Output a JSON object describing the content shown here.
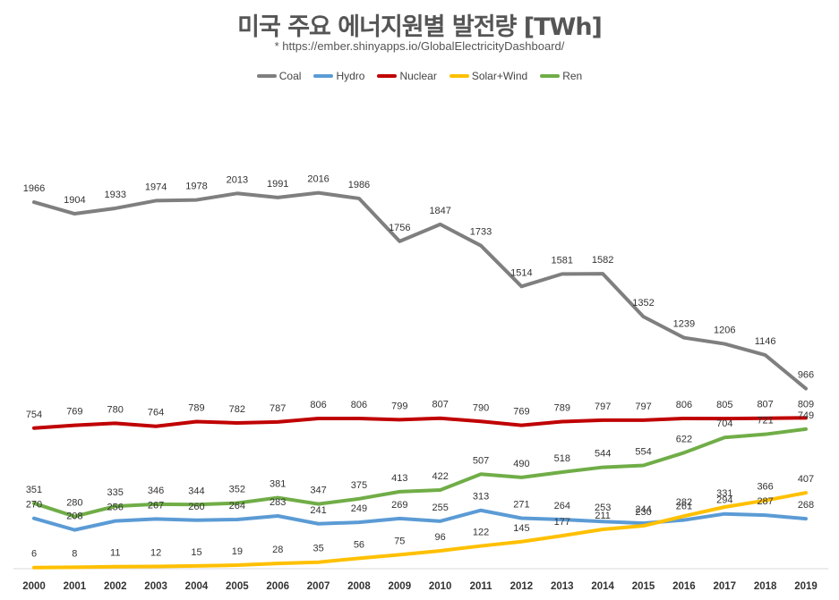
{
  "chart_data": {
    "type": "line",
    "title": "미국 주요 에너지원별 발전량 [TWh]",
    "subtitle": "* https://ember.shinyapps.io/GlobalElectricityDashboard/",
    "xlabel": "",
    "ylabel": "",
    "ylim": [
      0,
      2200
    ],
    "grid": false,
    "legend_position": "top",
    "x": [
      "2000",
      "2001",
      "2002",
      "2003",
      "2004",
      "2005",
      "2006",
      "2007",
      "2008",
      "2009",
      "2010",
      "2011",
      "2012",
      "2013",
      "2014",
      "2015",
      "2016",
      "2017",
      "2018",
      "2019"
    ],
    "series": [
      {
        "name": "Coal",
        "color": "#7f7f7f",
        "values": [
          1966,
          1904,
          1933,
          1974,
          1978,
          2013,
          1991,
          2016,
          1986,
          1756,
          1847,
          1733,
          1514,
          1581,
          1582,
          1352,
          1239,
          1206,
          1146,
          966
        ]
      },
      {
        "name": "Hydro",
        "color": "#5b9bd5",
        "values": [
          270,
          208,
          256,
          267,
          260,
          264,
          283,
          241,
          249,
          269,
          255,
          313,
          271,
          264,
          253,
          244,
          261,
          294,
          287,
          268
        ]
      },
      {
        "name": "Nuclear",
        "color": "#c00000",
        "values": [
          754,
          769,
          780,
          764,
          789,
          782,
          787,
          806,
          806,
          799,
          807,
          790,
          769,
          789,
          797,
          797,
          806,
          805,
          807,
          809
        ]
      },
      {
        "name": "Solar+Wind",
        "color": "#ffc000",
        "values": [
          6,
          8,
          11,
          12,
          15,
          19,
          28,
          35,
          56,
          75,
          96,
          122,
          145,
          177,
          211,
          230,
          282,
          331,
          366,
          407
        ]
      },
      {
        "name": "Ren",
        "color": "#70ad47",
        "values": [
          351,
          280,
          335,
          346,
          344,
          352,
          381,
          347,
          375,
          413,
          422,
          507,
          490,
          518,
          544,
          554,
          622,
          704,
          721,
          749
        ]
      }
    ]
  }
}
